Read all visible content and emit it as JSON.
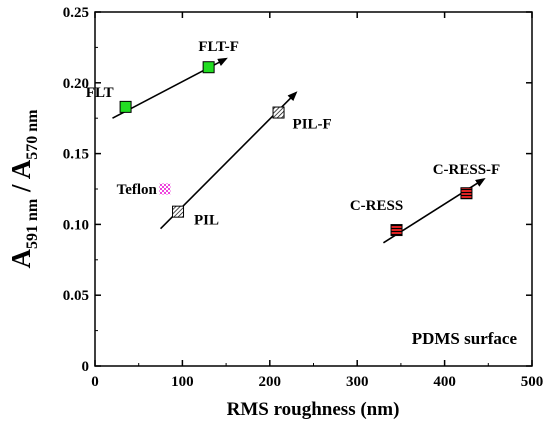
{
  "chart_data": {
    "type": "scatter",
    "title": "",
    "xlabel": "RMS roughness (nm)",
    "ylabel": {
      "main_1": "A",
      "sub_1": "591 nm",
      "sep": " / ",
      "main_2": "A",
      "sub_2": "570 nm"
    },
    "xlim": [
      0,
      500
    ],
    "ylim": [
      0,
      0.25
    ],
    "xticks": [
      0,
      100,
      200,
      300,
      400,
      500
    ],
    "yticks": [
      "0",
      "0.05",
      "0.10",
      "0.15",
      "0.20",
      "0.25"
    ],
    "annotation": "PDMS surface",
    "grid": false,
    "legend": "none",
    "points": [
      {
        "name": "FLT",
        "x": 35,
        "y": 0.183,
        "color": "#22dd22",
        "pattern": "solid"
      },
      {
        "name": "FLT-F",
        "x": 130,
        "y": 0.211,
        "color": "#22dd22",
        "pattern": "solid"
      },
      {
        "name": "Teflon",
        "x": 80,
        "y": 0.125,
        "color": "#ee44dd",
        "pattern": "checker"
      },
      {
        "name": "PIL",
        "x": 95,
        "y": 0.109,
        "color": "#ffffff",
        "pattern": "hatch"
      },
      {
        "name": "PIL-F",
        "x": 210,
        "y": 0.179,
        "color": "#ffffff",
        "pattern": "hatch"
      },
      {
        "name": "C-RESS",
        "x": 345,
        "y": 0.096,
        "color": "#dd2222",
        "pattern": "stripes"
      },
      {
        "name": "C-RESS-F",
        "x": 425,
        "y": 0.122,
        "color": "#dd2222",
        "pattern": "stripes"
      }
    ],
    "arrows": [
      {
        "from": [
          20,
          0.175
        ],
        "to": [
          150,
          0.217
        ]
      },
      {
        "from": [
          75,
          0.097
        ],
        "to": [
          230,
          0.193
        ]
      },
      {
        "from": [
          330,
          0.087
        ],
        "to": [
          445,
          0.132
        ]
      }
    ]
  }
}
